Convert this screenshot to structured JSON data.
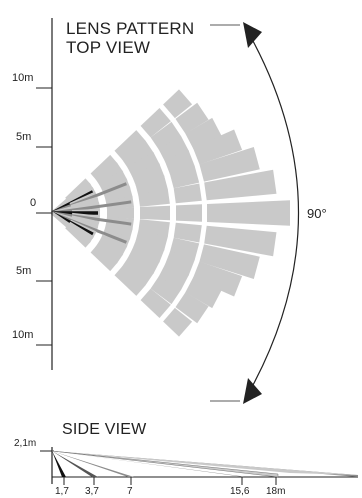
{
  "diagram": {
    "top_view": {
      "title_line1": "LENS PATTERN",
      "title_line2": "TOP VIEW",
      "distance_labels": [
        "10m",
        "5m",
        "0",
        "5m",
        "10m"
      ],
      "angle_label": "90°"
    },
    "side_view": {
      "title": "SIDE VIEW",
      "height_label": "2,1m",
      "distance_labels": [
        "1,7",
        "3,7",
        "7",
        "15,6",
        "18m"
      ]
    },
    "colors": {
      "ray_light": "#c9c9c9",
      "ray_mid": "#8c8c8c",
      "ray_dark": "#111111",
      "line": "#222222"
    }
  }
}
